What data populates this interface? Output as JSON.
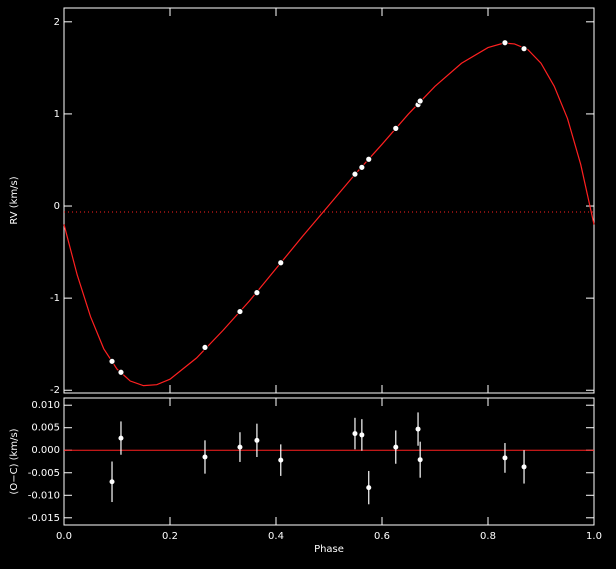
{
  "chart_data": [
    {
      "type": "line",
      "ylabel": "RV (km/s)",
      "xlim": [
        0,
        1
      ],
      "ylim": [
        -2.03,
        2.15
      ],
      "yticks": [
        -2,
        -1,
        0,
        1,
        2
      ],
      "reference_line": -0.065,
      "reference_color": "#ff2020",
      "points": {
        "color": "#ffffff",
        "x": [
          0.0906,
          0.1075,
          0.266,
          0.332,
          0.364,
          0.409,
          0.549,
          0.562,
          0.575,
          0.626,
          0.668,
          0.672,
          0.832,
          0.868
        ],
        "values": [
          -1.686,
          -1.805,
          -1.535,
          -1.146,
          -0.94,
          -0.616,
          0.346,
          0.42,
          0.508,
          0.843,
          1.1,
          1.14,
          1.773,
          1.708
        ]
      },
      "model": {
        "color": "#ff2020",
        "x": [
          0,
          0.025,
          0.05,
          0.075,
          0.1,
          0.125,
          0.15,
          0.175,
          0.2,
          0.25,
          0.3,
          0.35,
          0.4,
          0.45,
          0.5,
          0.55,
          0.6,
          0.65,
          0.7,
          0.75,
          0.8,
          0.83,
          0.85,
          0.875,
          0.9,
          0.925,
          0.95,
          0.975,
          1
        ],
        "values": [
          -0.2,
          -0.75,
          -1.2,
          -1.55,
          -1.77,
          -1.9,
          -1.95,
          -1.94,
          -1.88,
          -1.65,
          -1.35,
          -1.03,
          -0.68,
          -0.33,
          0.01,
          0.35,
          0.67,
          1.0,
          1.3,
          1.55,
          1.72,
          1.77,
          1.76,
          1.7,
          1.55,
          1.3,
          0.95,
          0.45,
          -0.2
        ]
      }
    },
    {
      "type": "errorbar",
      "ylabel": "(O−C) (km/s)",
      "xlabel": "Phase",
      "xlim": [
        0,
        1
      ],
      "ylim": [
        -0.0166,
        0.0116
      ],
      "xticks": [
        {
          "value": 0,
          "label": "0.0"
        },
        {
          "value": 0.2,
          "label": "0.2"
        },
        {
          "value": 0.4,
          "label": "0.4"
        },
        {
          "value": 0.6,
          "label": "0.6"
        },
        {
          "value": 0.8,
          "label": "0.8"
        },
        {
          "value": 1,
          "label": "1.0"
        }
      ],
      "yticks": [
        {
          "value": -0.015,
          "label": "-0.015"
        },
        {
          "value": -0.01,
          "label": "-0.010"
        },
        {
          "value": -0.005,
          "label": "-0.005"
        },
        {
          "value": 0,
          "label": "0.000"
        },
        {
          "value": 0.005,
          "label": "0.005"
        },
        {
          "value": 0.01,
          "label": "0.010"
        }
      ],
      "reference_line": 0,
      "reference_color": "#ff2020",
      "color": "#ffffff",
      "x": [
        0.0906,
        0.1075,
        0.266,
        0.332,
        0.364,
        0.409,
        0.549,
        0.562,
        0.575,
        0.626,
        0.668,
        0.672,
        0.832,
        0.868
      ],
      "values": [
        -0.007,
        0.0027,
        -0.0015,
        0.0007,
        0.0022,
        -0.0022,
        0.0037,
        0.0034,
        -0.0083,
        0.0007,
        0.0047,
        -0.0021,
        -0.0017,
        -0.0037
      ],
      "errors": [
        0.0045,
        0.0037,
        0.0037,
        0.0033,
        0.0037,
        0.0035,
        0.0035,
        0.0035,
        0.0037,
        0.0037,
        0.0037,
        0.004,
        0.0033,
        0.0037
      ]
    }
  ]
}
